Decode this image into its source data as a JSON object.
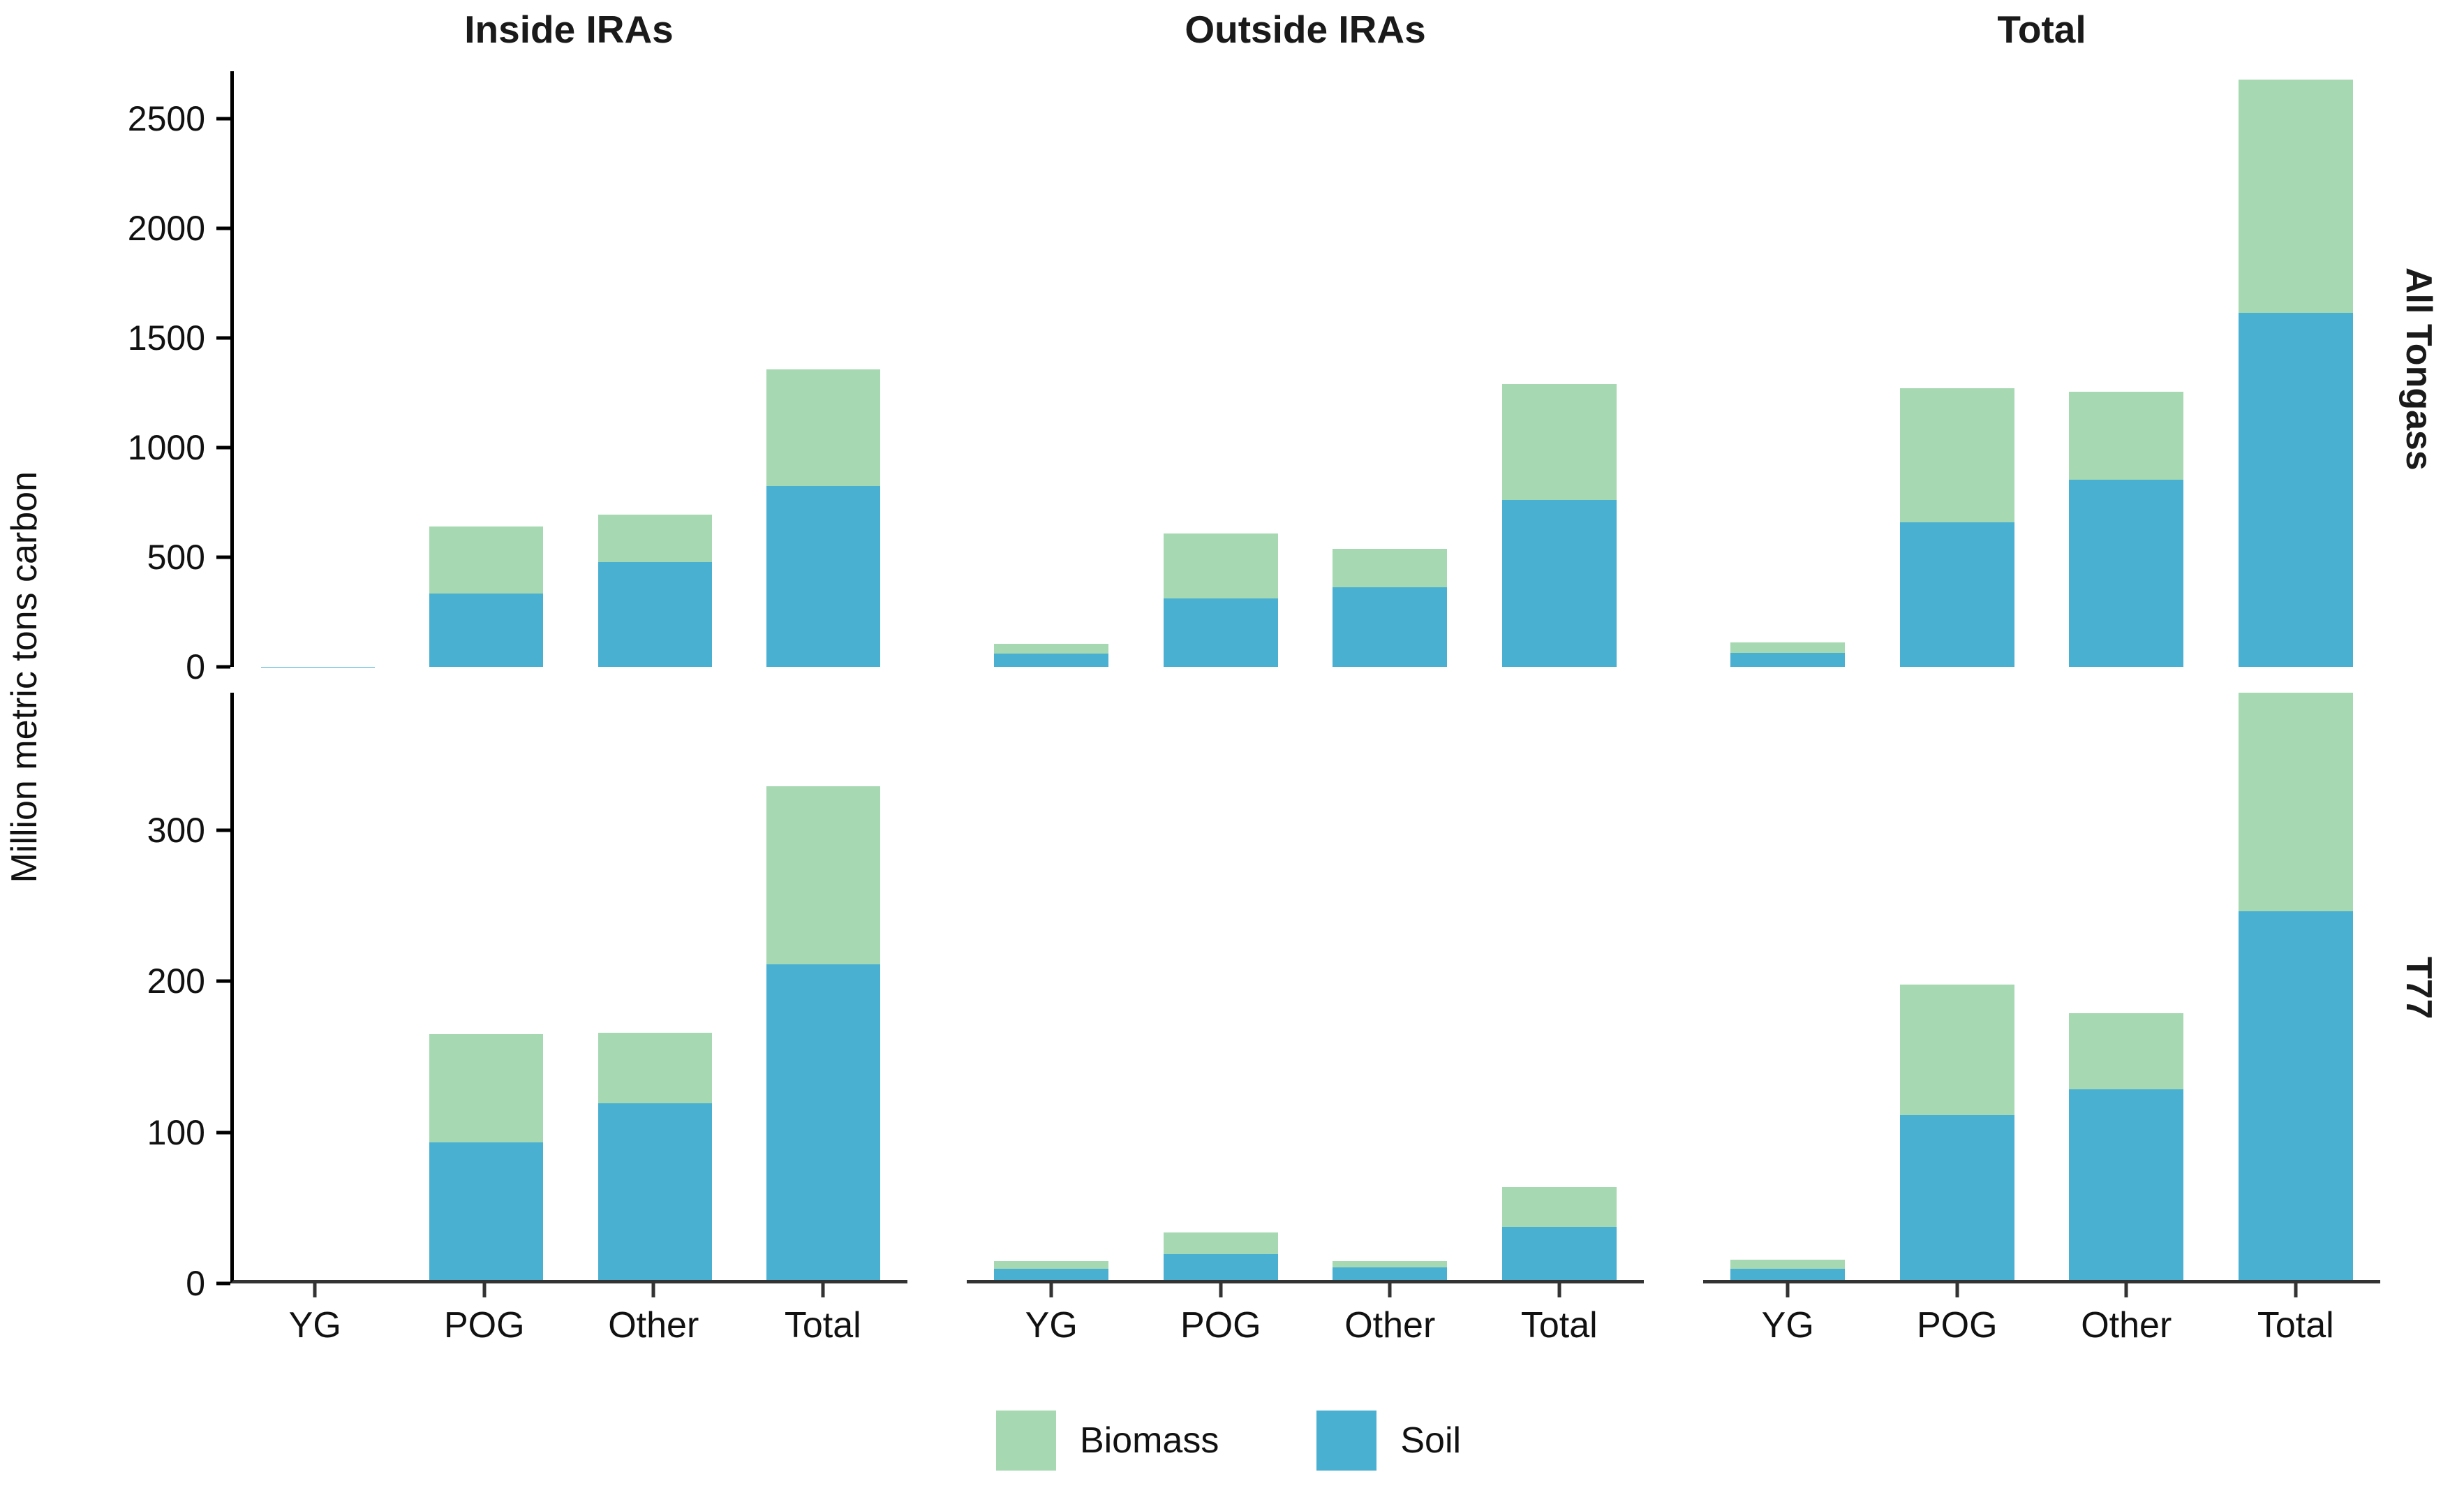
{
  "figure": {
    "y_axis_title": "Million metric tons carbon",
    "legend": {
      "biomass_label": "Biomass",
      "soil_label": "Soil"
    }
  },
  "chart_data": {
    "type": "bar",
    "stacked": true,
    "orientation": "vertical",
    "title": "",
    "xlabel": "",
    "ylabel": "Million metric tons carbon",
    "grid": false,
    "legend_position": "bottom",
    "col_facets": [
      "Inside IRAs",
      "Outside IRAs",
      "Total"
    ],
    "row_facets": [
      "All Tongass",
      "T77"
    ],
    "categories": [
      "YG",
      "POG",
      "Other",
      "Total"
    ],
    "series_names": [
      "Biomass",
      "Soil"
    ],
    "colors": {
      "biomass": "#A6D8B2",
      "soil": "#4AB0D2"
    },
    "row_axes": [
      {
        "ylim": [
          0,
          2715
        ],
        "ticks": [
          0,
          500,
          1000,
          1500,
          2000,
          2500
        ]
      },
      {
        "ylim": [
          0,
          391
        ],
        "ticks": [
          0,
          100,
          200,
          300
        ]
      }
    ],
    "units": "Million metric tons carbon",
    "panels": [
      {
        "row": "All Tongass",
        "col": "Inside IRAs",
        "soil": [
          6,
          340,
          485,
          830
        ],
        "biomass": [
          4,
          310,
          220,
          535
        ]
      },
      {
        "row": "All Tongass",
        "col": "Outside IRAs",
        "soil": [
          65,
          318,
          369,
          765
        ],
        "biomass": [
          50,
          300,
          180,
          535
        ]
      },
      {
        "row": "All Tongass",
        "col": "Total",
        "soil": [
          68,
          665,
          860,
          1620
        ],
        "biomass": [
          52,
          615,
          405,
          1065
        ]
      },
      {
        "row": "T77",
        "col": "Inside IRAs",
        "soil": [
          0.4,
          92,
          118,
          210
        ],
        "biomass": [
          0.3,
          72,
          47,
          118
        ]
      },
      {
        "row": "T77",
        "col": "Outside IRAs",
        "soil": [
          8,
          18,
          9,
          36
        ],
        "biomass": [
          6,
          15,
          5,
          27
        ]
      },
      {
        "row": "T77",
        "col": "Total",
        "soil": [
          8,
          110,
          127,
          245
        ],
        "biomass": [
          7,
          87,
          51,
          145
        ]
      }
    ]
  }
}
